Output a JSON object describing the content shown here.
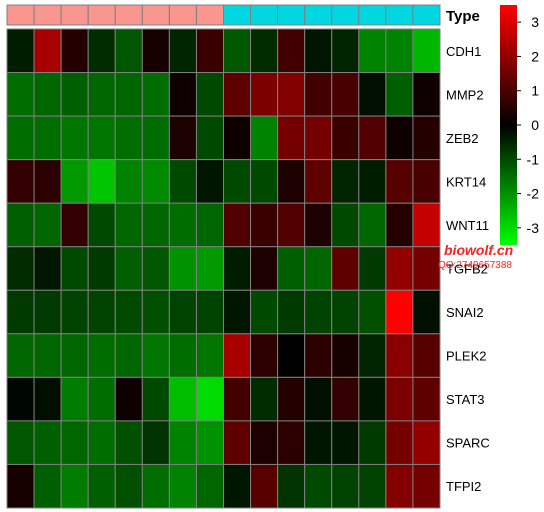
{
  "chart_data": {
    "type": "heatmap",
    "annotation": {
      "label": "Type",
      "groups": [
        {
          "count": 8,
          "color": "#F8968F"
        },
        {
          "count": 8,
          "color": "#00D7E0"
        }
      ]
    },
    "rows": [
      "CDH1",
      "MMP2",
      "ZEB2",
      "KRT14",
      "WNT11",
      "TGFB2",
      "SNAI2",
      "PLEK2",
      "STAT3",
      "SPARC",
      "TFPI2"
    ],
    "values": [
      [
        -0.4,
        2.3,
        0.5,
        -0.6,
        -1.2,
        0.3,
        -0.5,
        0.8,
        -1.2,
        -0.6,
        0.9,
        -0.3,
        -0.5,
        -1.8,
        -1.8,
        -2.5
      ],
      [
        -1.5,
        -1.4,
        -1.3,
        -1.4,
        -1.4,
        -1.5,
        0.2,
        -1.0,
        1.3,
        1.7,
        1.8,
        0.9,
        1.0,
        -0.2,
        -1.3,
        0.2
      ],
      [
        -1.5,
        -1.5,
        -1.6,
        -1.6,
        -1.5,
        -1.5,
        0.4,
        -1.0,
        0.2,
        -1.8,
        1.6,
        1.6,
        0.8,
        1.1,
        0.2,
        0.5
      ],
      [
        0.7,
        0.6,
        -2.1,
        -2.7,
        -1.8,
        -1.9,
        -1.0,
        -0.3,
        -1.0,
        -1.0,
        0.4,
        1.3,
        -0.5,
        -0.4,
        1.2,
        1.0
      ],
      [
        -1.3,
        -1.4,
        0.7,
        -1.0,
        -1.4,
        -1.4,
        -1.5,
        -1.4,
        1.1,
        0.8,
        1.1,
        0.4,
        -1.0,
        -1.4,
        0.5,
        2.7
      ],
      [
        -0.6,
        -0.3,
        -1.0,
        -0.8,
        -1.3,
        -1.2,
        -2.0,
        -2.1,
        -0.4,
        0.4,
        -1.3,
        -1.4,
        1.3,
        -0.8,
        2.0,
        1.6
      ],
      [
        -0.8,
        -0.8,
        -0.9,
        -0.9,
        -1.0,
        -1.1,
        -0.9,
        -0.9,
        -0.3,
        -1.0,
        -0.8,
        -0.9,
        -0.9,
        -1.1,
        3.5,
        -0.2
      ],
      [
        -1.4,
        -1.4,
        -1.4,
        -1.5,
        -1.4,
        -1.6,
        -1.5,
        -1.6,
        2.3,
        0.6,
        0.0,
        0.6,
        0.3,
        -0.5,
        1.9,
        1.2
      ],
      [
        -0.1,
        -0.2,
        -1.7,
        -1.5,
        0.2,
        -1.0,
        -2.6,
        -3.0,
        0.9,
        -0.6,
        0.5,
        -0.2,
        0.7,
        -0.3,
        1.7,
        1.3
      ],
      [
        -1.2,
        -1.3,
        -1.4,
        -1.5,
        -1.1,
        -0.7,
        -1.8,
        -2.0,
        1.3,
        0.4,
        0.6,
        -0.3,
        -0.3,
        -0.8,
        1.6,
        2.0
      ],
      [
        0.3,
        -1.3,
        -1.7,
        -1.3,
        -1.1,
        -1.5,
        -1.8,
        -1.4,
        -0.3,
        1.2,
        -0.7,
        -1.0,
        -0.9,
        -0.9,
        1.8,
        1.6
      ]
    ],
    "legend": {
      "ticks": [
        3,
        2,
        1,
        0,
        -1,
        -2,
        -3
      ],
      "min": -3.5,
      "max": 3.5,
      "placement": "right"
    },
    "colors": {
      "low": "#00FF00",
      "mid": "#000000",
      "high": "#FF0000",
      "grid": "#808080"
    }
  },
  "watermark": {
    "site": "biowolf.cn",
    "contact": "QQ:2749657388"
  }
}
